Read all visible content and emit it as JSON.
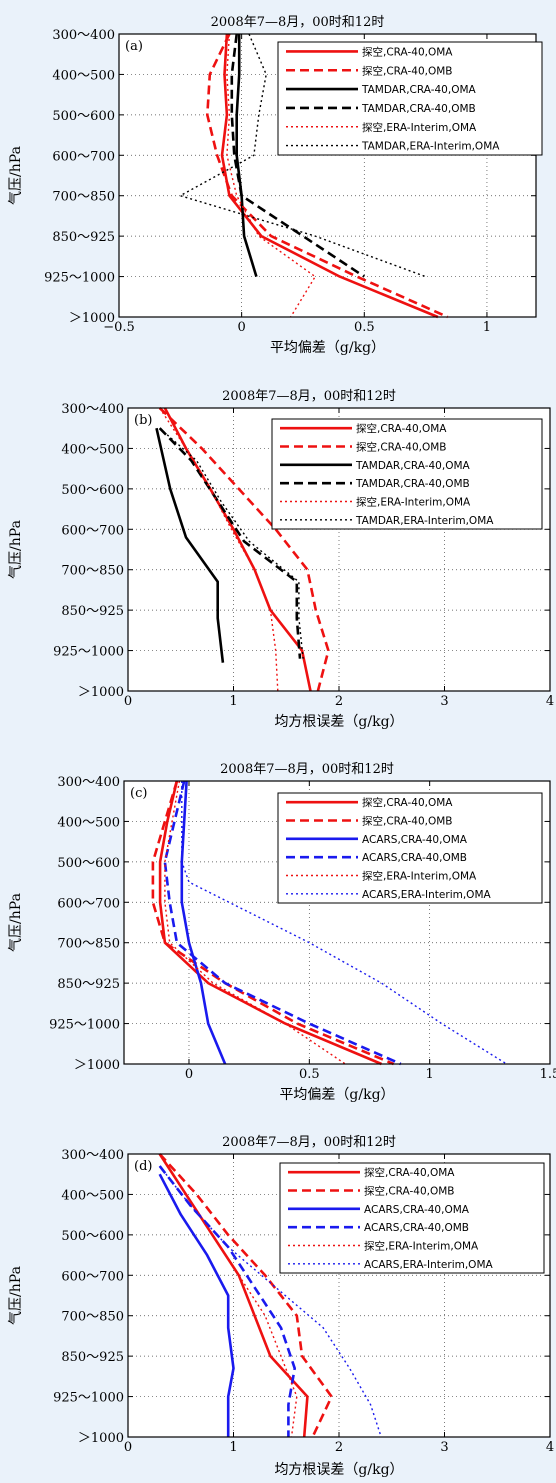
{
  "colors": {
    "red": "#ee1111",
    "black": "#000000",
    "blue": "#1a1aee",
    "background": "#eaf2fa"
  },
  "ylabel": "气压/hPa",
  "chart_data": [
    {
      "type": "line",
      "tag": "(a)",
      "title": "2008年7—8月，00时和12时",
      "xlabel": "平均偏差（g/kg）",
      "ylabel": "气压/hPa",
      "xlim": [
        -0.5,
        1.2
      ],
      "xticks": [
        -0.5,
        0,
        0.5,
        1
      ],
      "yticks": [
        "300～400",
        "400～500",
        "500～600",
        "600～700",
        "700～850",
        "850～925",
        "925～1000",
        "＞1000"
      ],
      "series": [
        {
          "name": "探空,CRA-40,OMA",
          "color": "#ee1111",
          "style": "solid",
          "width": 2.6,
          "x": [
            -0.06,
            -0.07,
            -0.06,
            -0.08,
            -0.05,
            0.08,
            0.4,
            0.8
          ],
          "y": [
            0,
            1,
            2,
            3,
            4,
            5,
            6,
            7
          ]
        },
        {
          "name": "探空,CRA-40,OMB",
          "color": "#ee1111",
          "style": "dashed",
          "width": 2.6,
          "x": [
            -0.05,
            -0.13,
            -0.14,
            -0.1,
            -0.04,
            0.12,
            0.47,
            0.84
          ],
          "y": [
            0,
            1,
            2,
            3,
            4,
            5,
            6,
            7
          ]
        },
        {
          "name": "TAMDAR,CRA-40,OMA",
          "color": "#000000",
          "style": "solid",
          "width": 2.6,
          "x": [
            -0.01,
            -0.01,
            -0.02,
            -0.02,
            0.0,
            0.01,
            0.06
          ],
          "y": [
            0,
            1,
            2,
            3,
            4,
            5,
            6
          ]
        },
        {
          "name": "TAMDAR,CRA-40,OMB",
          "color": "#000000",
          "style": "dashed",
          "width": 2.6,
          "x": [
            -0.02,
            -0.04,
            -0.04,
            -0.03,
            0.0,
            0.25,
            0.5
          ],
          "y": [
            0,
            1,
            2,
            3,
            4,
            5,
            6
          ]
        },
        {
          "name": "探空,ERA-Interim,OMA",
          "color": "#ee1111",
          "style": "dotted",
          "width": 1.4,
          "x": [
            -0.05,
            -0.06,
            -0.05,
            -0.06,
            -0.02,
            0.07,
            0.3,
            0.2
          ],
          "y": [
            0,
            1,
            2,
            3,
            4,
            5,
            6,
            7
          ]
        },
        {
          "name": "TAMDAR,ERA-Interim,OMA",
          "color": "#000000",
          "style": "dotted",
          "width": 1.4,
          "x": [
            0.03,
            0.1,
            0.07,
            0.05,
            -0.25,
            0.3,
            0.75
          ],
          "y": [
            0,
            1,
            2,
            3,
            4,
            5,
            6
          ]
        }
      ]
    },
    {
      "type": "line",
      "tag": "(b)",
      "title": "2008年7—8月，00时和12时",
      "xlabel": "均方根误差（g/kg）",
      "ylabel": "气压/hPa",
      "xlim": [
        0,
        4
      ],
      "xticks": [
        0,
        1,
        2,
        3,
        4
      ],
      "yticks": [
        "300～400",
        "400～500",
        "500～600",
        "600～700",
        "700～850",
        "850～925",
        "925～1000",
        "＞1000"
      ],
      "series": [
        {
          "name": "探空,CRA-40,OMA",
          "color": "#ee1111",
          "style": "solid",
          "width": 2.6,
          "x": [
            0.35,
            0.55,
            0.78,
            1.0,
            1.2,
            1.35,
            1.65,
            1.73
          ],
          "y": [
            0,
            1,
            2,
            3,
            4,
            5,
            6,
            7
          ]
        },
        {
          "name": "探空,CRA-40,OMB",
          "color": "#ee1111",
          "style": "dashed",
          "width": 2.6,
          "x": [
            0.3,
            0.7,
            1.05,
            1.4,
            1.7,
            1.78,
            1.9,
            1.8
          ],
          "y": [
            0,
            1,
            2,
            3,
            4,
            5,
            6,
            7
          ]
        },
        {
          "name": "TAMDAR,CRA-40,OMA",
          "color": "#000000",
          "style": "solid",
          "width": 2.6,
          "x": [
            0.27,
            0.4,
            0.55,
            0.85,
            0.85,
            0.9
          ],
          "y": [
            0.5,
            2,
            3.2,
            4.3,
            5.2,
            6.3
          ]
        },
        {
          "name": "TAMDAR,CRA-40,OMB",
          "color": "#000000",
          "style": "dashed",
          "width": 2.6,
          "x": [
            0.3,
            0.6,
            0.85,
            1.1,
            1.6,
            1.6,
            1.63
          ],
          "y": [
            0.5,
            1.3,
            2.3,
            3.3,
            4.3,
            5.2,
            6.2
          ]
        },
        {
          "name": "探空,ERA-Interim,OMA",
          "color": "#ee1111",
          "style": "dotted",
          "width": 1.4,
          "x": [
            0.3,
            0.55,
            0.78,
            0.98,
            1.2,
            1.35,
            1.4,
            1.42
          ],
          "y": [
            0,
            1,
            2,
            3,
            4,
            5,
            6,
            7
          ]
        },
        {
          "name": "TAMDAR,ERA-Interim,OMA",
          "color": "#000000",
          "style": "dotted",
          "width": 1.4,
          "x": [
            0.3,
            0.65,
            0.88,
            1.15,
            1.62,
            1.62,
            1.66
          ],
          "y": [
            0.5,
            1.3,
            2.3,
            3.3,
            4.3,
            5.2,
            6.2
          ]
        }
      ]
    },
    {
      "type": "line",
      "tag": "(c)",
      "title": "2008年7—8月，00时和12时",
      "xlabel": "平均偏差（g/kg）",
      "ylabel": "气压/hPa",
      "xlim": [
        -0.27,
        1.5
      ],
      "xticks": [
        0,
        0.5,
        1,
        1.5
      ],
      "yticks": [
        "300～400",
        "400～500",
        "500～600",
        "600～700",
        "700～850",
        "850～925",
        "925～1000",
        "＞1000"
      ],
      "series": [
        {
          "name": "探空,CRA-40,OMA",
          "color": "#ee1111",
          "style": "solid",
          "width": 2.6,
          "x": [
            -0.05,
            -0.09,
            -0.12,
            -0.12,
            -0.1,
            0.08,
            0.4,
            0.8
          ],
          "y": [
            0,
            1,
            2,
            3,
            4,
            5,
            6,
            7
          ]
        },
        {
          "name": "探空,CRA-40,OMB",
          "color": "#ee1111",
          "style": "dashed",
          "width": 2.6,
          "x": [
            -0.05,
            -0.1,
            -0.15,
            -0.15,
            -0.1,
            0.15,
            0.45,
            0.85
          ],
          "y": [
            0,
            1,
            2,
            3,
            4,
            5,
            6,
            7
          ]
        },
        {
          "name": "ACARS,CRA-40,OMA",
          "color": "#1a1aee",
          "style": "solid",
          "width": 2.6,
          "x": [
            -0.01,
            -0.02,
            -0.03,
            -0.03,
            0.0,
            0.05,
            0.08,
            0.15
          ],
          "y": [
            0,
            1,
            2,
            3,
            4,
            5,
            6,
            7
          ]
        },
        {
          "name": "ACARS,CRA-40,OMB",
          "color": "#1a1aee",
          "style": "dashed",
          "width": 2.6,
          "x": [
            -0.02,
            -0.06,
            -0.1,
            -0.08,
            -0.05,
            0.15,
            0.5,
            0.88
          ],
          "y": [
            0,
            1,
            2,
            3,
            4,
            5,
            6,
            7
          ]
        },
        {
          "name": "探空,ERA-Interim,OMA",
          "color": "#ee1111",
          "style": "dotted",
          "width": 1.4,
          "x": [
            -0.04,
            -0.07,
            -0.1,
            -0.1,
            -0.08,
            0.1,
            0.4,
            0.65
          ],
          "y": [
            0,
            1,
            2,
            3,
            4,
            5,
            6,
            7
          ]
        },
        {
          "name": "ACARS,ERA-Interim,OMA",
          "color": "#1a1aee",
          "style": "dotted",
          "width": 1.4,
          "x": [
            -0.03,
            -0.03,
            -0.03,
            0.0,
            0.5,
            0.8,
            1.05,
            1.32
          ],
          "y": [
            0,
            1,
            2,
            2.5,
            4,
            5,
            6,
            7
          ]
        }
      ]
    },
    {
      "type": "line",
      "tag": "(d)",
      "title": "2008年7—8月，00时和12时",
      "xlabel": "均方根误差（g/kg）",
      "ylabel": "气压/hPa",
      "xlim": [
        0,
        4
      ],
      "xticks": [
        0,
        1,
        2,
        3,
        4
      ],
      "yticks": [
        "300～400",
        "400～500",
        "500～600",
        "600～700",
        "700～850",
        "850～925",
        "925～1000",
        "＞1000"
      ],
      "series": [
        {
          "name": "探空,CRA-40,OMA",
          "color": "#ee1111",
          "style": "solid",
          "width": 2.6,
          "x": [
            0.3,
            0.55,
            0.8,
            1.05,
            1.2,
            1.35,
            1.7,
            1.67
          ],
          "y": [
            0,
            1,
            2,
            3,
            4,
            5,
            6,
            7
          ]
        },
        {
          "name": "探空,CRA-40,OMB",
          "color": "#ee1111",
          "style": "dashed",
          "width": 2.6,
          "x": [
            0.3,
            0.65,
            0.95,
            1.3,
            1.6,
            1.65,
            1.93,
            1.75
          ],
          "y": [
            0,
            1,
            2,
            3,
            4,
            5,
            6,
            7
          ]
        },
        {
          "name": "ACARS,CRA-40,OMA",
          "color": "#1a1aee",
          "style": "solid",
          "width": 2.6,
          "x": [
            0.3,
            0.5,
            0.75,
            0.95,
            0.95,
            1.0,
            0.95,
            0.95
          ],
          "y": [
            0.5,
            1.5,
            2.5,
            3.5,
            4.3,
            5.3,
            6,
            7
          ]
        },
        {
          "name": "ACARS,CRA-40,OMB",
          "color": "#1a1aee",
          "style": "dashed",
          "width": 2.6,
          "x": [
            0.3,
            0.6,
            0.95,
            1.2,
            1.45,
            1.58,
            1.52,
            1.52
          ],
          "y": [
            0.3,
            1.3,
            2.3,
            3.3,
            4.3,
            5.3,
            6.2,
            7
          ]
        },
        {
          "name": "探空,ERA-Interim,OMA",
          "color": "#ee1111",
          "style": "dotted",
          "width": 1.4,
          "x": [
            0.3,
            0.55,
            0.8,
            1.05,
            1.3,
            1.45,
            1.6,
            1.55
          ],
          "y": [
            0,
            1,
            2,
            3,
            4,
            5,
            6,
            7
          ]
        },
        {
          "name": "ACARS,ERA-Interim,OMA",
          "color": "#1a1aee",
          "style": "dotted",
          "width": 1.4,
          "x": [
            0.3,
            0.6,
            0.95,
            1.4,
            1.85,
            2.1,
            2.3,
            2.4
          ],
          "y": [
            0.3,
            1.3,
            2.3,
            3.3,
            4.3,
            5.3,
            6.2,
            7
          ]
        }
      ]
    }
  ]
}
